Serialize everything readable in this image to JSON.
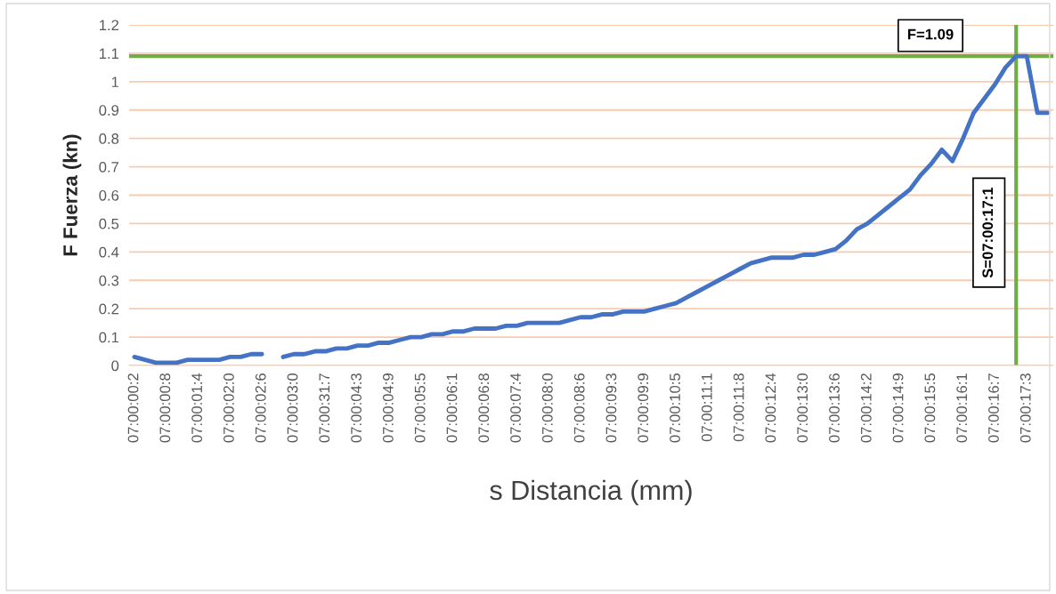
{
  "chart_data": {
    "type": "line",
    "xlabel": "s Distancia (mm)",
    "ylabel": "F Fuerza (kn)",
    "categories": [
      "07:00:00:2",
      null,
      null,
      "07:00:00:8",
      null,
      null,
      "07:00:01:4",
      null,
      null,
      "07:00:02:0",
      null,
      null,
      "07:00:02:6",
      null,
      null,
      "07:00:03:0",
      null,
      null,
      "07:00:31:7",
      null,
      null,
      "07:00:04:3",
      null,
      null,
      "07:00:04:9",
      null,
      null,
      "07:00:05:5",
      null,
      null,
      "07:00:06:1",
      null,
      null,
      "07:00:06:8",
      null,
      null,
      "07:00:07:4",
      null,
      null,
      "07:00:08:0",
      null,
      null,
      "07:00:08:6",
      null,
      null,
      "07:00:09:3",
      null,
      null,
      "07:00:09:9",
      null,
      null,
      "07:00:10:5",
      null,
      null,
      "07:00:11:1",
      null,
      null,
      "07:00:11:8",
      null,
      null,
      "07:00:12:4",
      null,
      null,
      "07:00:13:0",
      null,
      null,
      "07:00:13:6",
      null,
      null,
      "07:00:14:2",
      null,
      null,
      "07:00:14:9",
      null,
      null,
      "07:00:15:5",
      null,
      null,
      "07:00:16:1",
      null,
      null,
      "07:00:16:7",
      null,
      null,
      "07:00:17:3",
      null,
      null
    ],
    "series": [
      {
        "color": "#4472c4",
        "values": [
          0.03,
          0.02,
          0.01,
          0.01,
          0.01,
          0.02,
          0.02,
          0.02,
          0.02,
          0.03,
          0.03,
          0.04,
          0.04,
          null,
          0.03,
          0.04,
          0.04,
          0.05,
          0.05,
          0.06,
          0.06,
          0.07,
          0.07,
          0.08,
          0.08,
          0.09,
          0.1,
          0.1,
          0.11,
          0.11,
          0.12,
          0.12,
          0.13,
          0.13,
          0.13,
          0.14,
          0.14,
          0.15,
          0.15,
          0.15,
          0.15,
          0.16,
          0.17,
          0.17,
          0.18,
          0.18,
          0.19,
          0.19,
          0.19,
          0.2,
          0.21,
          0.22,
          0.24,
          0.26,
          0.28,
          0.3,
          0.32,
          0.34,
          0.36,
          0.37,
          0.38,
          0.38,
          0.38,
          0.39,
          0.39,
          0.4,
          0.41,
          0.44,
          0.48,
          0.5,
          0.53,
          0.56,
          0.59,
          0.62,
          0.67,
          0.71,
          0.76,
          0.72,
          0.8,
          0.89,
          0.94,
          0.99,
          1.05,
          1.09,
          1.09,
          0.89,
          0.89
        ]
      }
    ],
    "ylim": [
      0,
      1.2
    ],
    "yticks": [
      0,
      0.1,
      0.2,
      0.3,
      0.4,
      0.5,
      0.6,
      0.7,
      0.8,
      0.9,
      1,
      1.1,
      1.2
    ],
    "grid": "y",
    "marker": "none",
    "line_style": "solid",
    "ref_lines": [
      {
        "axis": "y",
        "value": 1.09,
        "label": "F=1.09",
        "color": "#70ad47"
      }
    ],
    "annotations": [
      "S=07:00:17:1"
    ]
  }
}
